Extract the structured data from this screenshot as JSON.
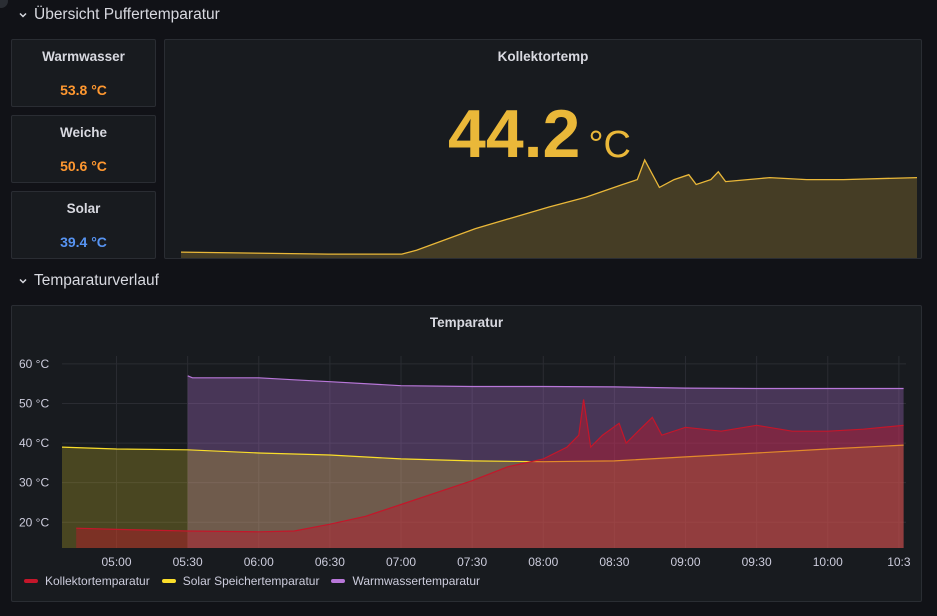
{
  "rows": {
    "overview": {
      "title": "Übersicht Puffertemparatur"
    },
    "history": {
      "title": "Temparaturverlauf"
    }
  },
  "stats": [
    {
      "title": "Warmwasser",
      "value": "53.8 °C",
      "color": "#ff9830"
    },
    {
      "title": "Weiche",
      "value": "50.6 °C",
      "color": "#ff9830"
    },
    {
      "title": "Solar",
      "value": "39.4 °C",
      "color": "#5794f2"
    }
  ],
  "kollektor": {
    "title": "Kollektortemp",
    "value": "44.2",
    "unit": "°C",
    "color": "#eab839"
  },
  "chart_data": {
    "type": "line",
    "title": "Temparatur",
    "y_ticks": [
      "20 °C",
      "30 °C",
      "40 °C",
      "50 °C",
      "60 °C"
    ],
    "x_ticks": [
      "05:00",
      "05:30",
      "06:00",
      "06:30",
      "07:00",
      "07:30",
      "08:00",
      "08:30",
      "09:00",
      "09:30",
      "10:00",
      "10:3"
    ],
    "ylim": [
      13.5,
      62
    ],
    "xlim": [
      "04:37",
      "10:33"
    ],
    "grid": true,
    "legend_position": "bottom-left",
    "series": [
      {
        "name": "Kollektortemparatur",
        "color": "#c4162a",
        "points": [
          [
            "04:43",
            18.5
          ],
          [
            "05:00",
            18.2
          ],
          [
            "05:30",
            17.8
          ],
          [
            "06:00",
            17.6
          ],
          [
            "06:15",
            17.8
          ],
          [
            "06:30",
            19.5
          ],
          [
            "06:45",
            21.5
          ],
          [
            "07:00",
            24.5
          ],
          [
            "07:15",
            27.5
          ],
          [
            "07:30",
            30.5
          ],
          [
            "07:45",
            34
          ],
          [
            "08:00",
            36
          ],
          [
            "08:10",
            39
          ],
          [
            "08:15",
            42
          ],
          [
            "08:17",
            51
          ],
          [
            "08:20",
            39
          ],
          [
            "08:25",
            42
          ],
          [
            "08:32",
            45
          ],
          [
            "08:35",
            40
          ],
          [
            "08:40",
            43
          ],
          [
            "08:46",
            46.5
          ],
          [
            "08:50",
            42
          ],
          [
            "09:00",
            44
          ],
          [
            "09:15",
            43
          ],
          [
            "09:30",
            44.5
          ],
          [
            "09:45",
            43
          ],
          [
            "10:00",
            43
          ],
          [
            "10:15",
            43.5
          ],
          [
            "10:32",
            44.5
          ]
        ]
      },
      {
        "name": "Solar Speichertemparatur",
        "color": "#fade2a",
        "points": [
          [
            "04:37",
            39
          ],
          [
            "05:00",
            38.5
          ],
          [
            "05:30",
            38.3
          ],
          [
            "06:00",
            37.5
          ],
          [
            "06:30",
            37
          ],
          [
            "07:00",
            36
          ],
          [
            "07:30",
            35.5
          ],
          [
            "08:00",
            35.3
          ],
          [
            "08:30",
            35.5
          ],
          [
            "09:00",
            36.5
          ],
          [
            "09:30",
            37.5
          ],
          [
            "10:00",
            38.5
          ],
          [
            "10:32",
            39.5
          ]
        ]
      },
      {
        "name": "Warmwassertemparatur",
        "color": "#b877d9",
        "points": [
          [
            "05:30",
            57
          ],
          [
            "05:32",
            56.5
          ],
          [
            "06:00",
            56.5
          ],
          [
            "06:15",
            56
          ],
          [
            "06:30",
            55.5
          ],
          [
            "07:00",
            54.5
          ],
          [
            "07:30",
            54.3
          ],
          [
            "08:00",
            54.3
          ],
          [
            "08:30",
            54.2
          ],
          [
            "09:00",
            53.9
          ],
          [
            "09:30",
            53.8
          ],
          [
            "10:00",
            53.8
          ],
          [
            "10:32",
            53.8
          ]
        ]
      }
    ]
  },
  "mini_chart": {
    "series": [
      [
        0,
        0.06
      ],
      [
        0.1,
        0.05
      ],
      [
        0.2,
        0.04
      ],
      [
        0.3,
        0.04
      ],
      [
        0.32,
        0.08
      ],
      [
        0.4,
        0.3
      ],
      [
        0.5,
        0.52
      ],
      [
        0.55,
        0.62
      ],
      [
        0.6,
        0.75
      ],
      [
        0.62,
        0.8
      ],
      [
        0.63,
        1.0
      ],
      [
        0.65,
        0.72
      ],
      [
        0.67,
        0.8
      ],
      [
        0.69,
        0.85
      ],
      [
        0.7,
        0.75
      ],
      [
        0.72,
        0.8
      ],
      [
        0.73,
        0.88
      ],
      [
        0.74,
        0.78
      ],
      [
        0.77,
        0.8
      ],
      [
        0.8,
        0.82
      ],
      [
        0.85,
        0.8
      ],
      [
        0.9,
        0.8
      ],
      [
        1.0,
        0.82
      ]
    ]
  }
}
